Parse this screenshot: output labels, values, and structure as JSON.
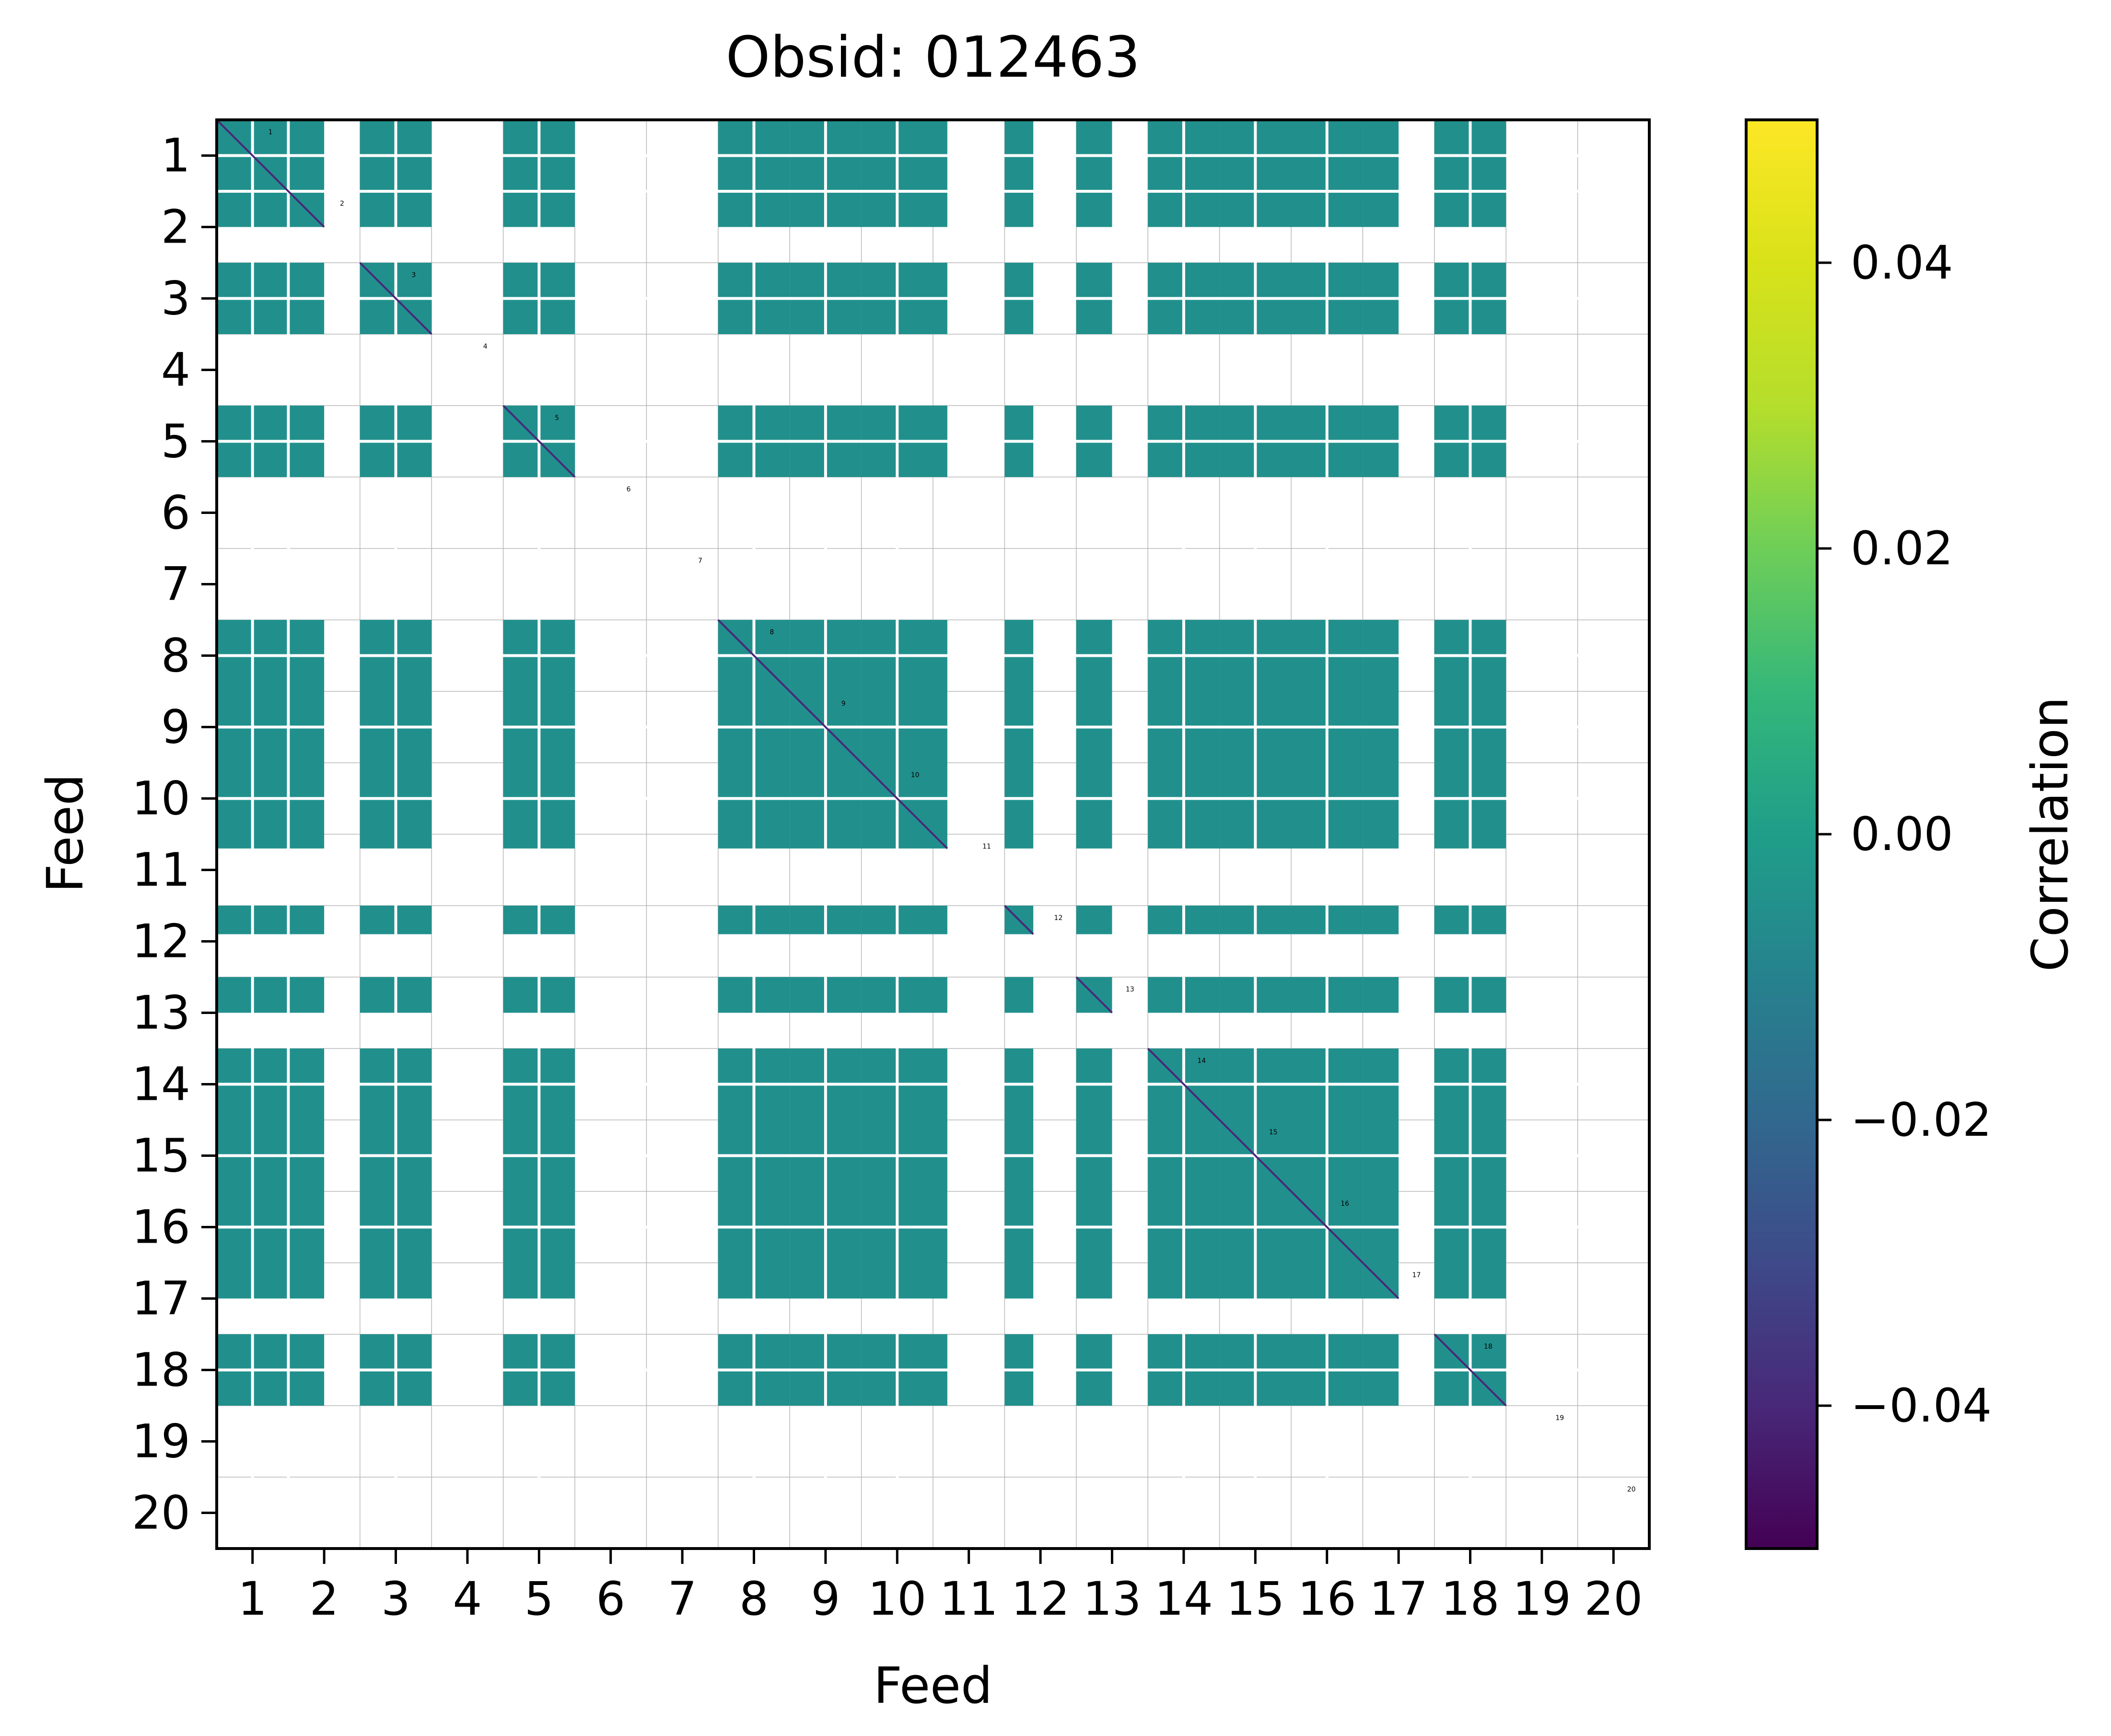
{
  "chart_data": {
    "type": "heatmap",
    "title": "Obsid: 012463",
    "xlabel": "Feed",
    "ylabel": "Feed",
    "x_tick_labels": [
      "1",
      "2",
      "3",
      "4",
      "5",
      "6",
      "7",
      "8",
      "9",
      "10",
      "11",
      "12",
      "13",
      "14",
      "15",
      "16",
      "17",
      "18",
      "19",
      "20"
    ],
    "y_tick_labels": [
      "1",
      "2",
      "3",
      "4",
      "5",
      "6",
      "7",
      "8",
      "9",
      "10",
      "11",
      "12",
      "13",
      "14",
      "15",
      "16",
      "17",
      "18",
      "19",
      "20"
    ],
    "feeds": [
      1,
      2,
      3,
      4,
      5,
      6,
      7,
      8,
      9,
      10,
      11,
      12,
      13,
      14,
      15,
      16,
      17,
      18,
      19,
      20
    ],
    "active_feeds": [
      1,
      2,
      3,
      5,
      8,
      9,
      10,
      11,
      12,
      13,
      14,
      15,
      16,
      17,
      18,
      19
    ],
    "feed_block_width": {
      "1": 1.5,
      "2": 0,
      "3": 1,
      "4": 0,
      "5": 1,
      "6": 0,
      "7": 0,
      "8": 1,
      "9": 1,
      "10": 1,
      "11": 0.2,
      "12": 0.4,
      "13": 0.5,
      "14": 1,
      "15": 1,
      "16": 1,
      "17": 0.5,
      "18": 1,
      "19": 0,
      "20": 0
    },
    "diagonal_labels": [
      "1",
      "2",
      "3",
      "4",
      "5",
      "6",
      "7",
      "8",
      "9",
      "10",
      "11",
      "12",
      "13",
      "14",
      "15",
      "16",
      "17",
      "18",
      "19",
      "20"
    ],
    "dominant_value": 0.0,
    "colorbar": {
      "label": "Correlation",
      "vmin": -0.05,
      "vmax": 0.05,
      "colormap": "viridis",
      "ticks": [
        0.04,
        0.02,
        0.0,
        -0.02,
        -0.04
      ],
      "tick_labels": [
        "0.04",
        "0.02",
        "0.00",
        "−0.02",
        "−0.04"
      ]
    }
  },
  "colors": {
    "cell": "#21908d",
    "grid": "#b8b8b8",
    "separator": "#ffffff",
    "axis": "#000000",
    "diagonal": "#482878"
  }
}
